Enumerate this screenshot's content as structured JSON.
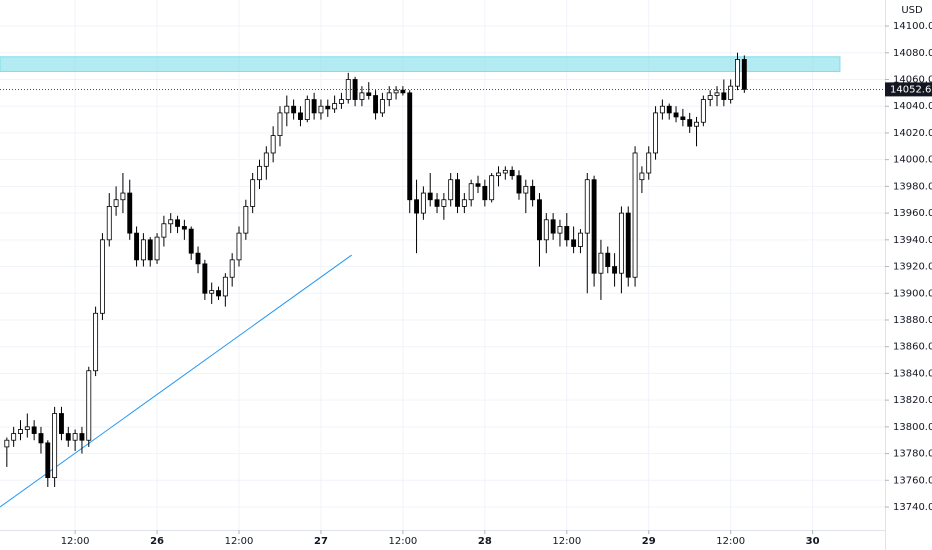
{
  "chart_data": {
    "type": "candlestick",
    "currency": "USD",
    "last_price": 14052.6,
    "up_color": "#ffffff",
    "down_color": "#000000",
    "outline_color": "#000000",
    "grid": true,
    "xlim": [
      -23,
      106.6
    ],
    "ylim": [
      13722.8,
      14119.5
    ],
    "yticks": [
      {
        "value": 13740,
        "label": "13740.0"
      },
      {
        "value": 13760,
        "label": "13760.0"
      },
      {
        "value": 13780,
        "label": "13780.0"
      },
      {
        "value": 13800,
        "label": "13800.0"
      },
      {
        "value": 13820,
        "label": "13820.0"
      },
      {
        "value": 13840,
        "label": "13840.0"
      },
      {
        "value": 13860,
        "label": "13860.0"
      },
      {
        "value": 13880,
        "label": "13880.0"
      },
      {
        "value": 13900,
        "label": "13900.0"
      },
      {
        "value": 13920,
        "label": "13920.0"
      },
      {
        "value": 13940,
        "label": "13940.0"
      },
      {
        "value": 13960,
        "label": "13960.0"
      },
      {
        "value": 13980,
        "label": "13980.0"
      },
      {
        "value": 14000,
        "label": "14000.0"
      },
      {
        "value": 14020,
        "label": "14020.0"
      },
      {
        "value": 14040,
        "label": "14040.0"
      },
      {
        "value": 14060,
        "label": "14060.0"
      },
      {
        "value": 14080,
        "label": "14080.0"
      },
      {
        "value": 14100,
        "label": "14100.0"
      }
    ],
    "xticks": [
      {
        "value": -12,
        "label": "12:00"
      },
      {
        "value": 0,
        "label": "26"
      },
      {
        "value": 12,
        "label": "12:00"
      },
      {
        "value": 24,
        "label": "27"
      },
      {
        "value": 36,
        "label": "12:00"
      },
      {
        "value": 48,
        "label": "28"
      },
      {
        "value": 60,
        "label": "12:00"
      },
      {
        "value": 72,
        "label": "29"
      },
      {
        "value": 84,
        "label": "12:00"
      },
      {
        "value": 96,
        "label": "30"
      }
    ],
    "zone": {
      "color": "#80deea",
      "x": [
        -23,
        100
      ],
      "y": [
        14066,
        14077
      ]
    },
    "trend_line": {
      "color": "#2196f3",
      "x": [
        -23,
        28.5
      ],
      "y": [
        13740,
        13928.6
      ]
    },
    "x": [
      -22,
      -21,
      -20,
      -19,
      -18,
      -17,
      -16,
      -15,
      -14,
      -13,
      -12,
      -11,
      -10,
      -9,
      -8,
      -7,
      -6,
      -5,
      -4,
      -3,
      -2,
      -1,
      0,
      1,
      2,
      3,
      4,
      5,
      6,
      7,
      8,
      9,
      10,
      11,
      12,
      13,
      14,
      15,
      16,
      17,
      18,
      19,
      20,
      21,
      22,
      23,
      24,
      25,
      26,
      27,
      28,
      29,
      30,
      31,
      32,
      33,
      34,
      35,
      36,
      37,
      38,
      39,
      40,
      41,
      42,
      43,
      44,
      45,
      46,
      47,
      48,
      49,
      50,
      51,
      52,
      53,
      54,
      55,
      56,
      57,
      58,
      59,
      60,
      61,
      62,
      63,
      64,
      65,
      66,
      67,
      68,
      69,
      70,
      71,
      72,
      73,
      74,
      75,
      76,
      77,
      78,
      79,
      80,
      81,
      82,
      83,
      84,
      85,
      86
    ],
    "open": [
      13785,
      13790,
      13795,
      13798,
      13800,
      13795,
      13788,
      13762,
      13810,
      13795,
      13790,
      13795,
      13790,
      13842,
      13885,
      13940,
      13965,
      13970,
      13975,
      13945,
      13925,
      13940,
      13925,
      13942,
      13952,
      13955,
      13950,
      13948,
      13930,
      13922,
      13900,
      13902,
      13898,
      13912,
      13925,
      13945,
      13965,
      13985,
      13995,
      14005,
      14018,
      14035,
      14040,
      14035,
      14030,
      14045,
      14035,
      14040,
      14038,
      14042,
      14045,
      14060,
      14045,
      14050,
      14048,
      14035,
      14045,
      14050,
      14052,
      14050,
      13970,
      13960,
      13975,
      13970,
      13965,
      13970,
      13985,
      13965,
      13970,
      13982,
      13980,
      13970,
      13988,
      13990,
      13992,
      13988,
      13975,
      13980,
      13970,
      13940,
      13955,
      13945,
      13950,
      13940,
      13935,
      13945,
      13985,
      13915,
      13930,
      13920,
      13915,
      13960,
      13912,
      13985,
      13990,
      14005,
      14035,
      14040,
      14035,
      14032,
      14030,
      14025,
      14028,
      14045,
      14048,
      14050,
      14045,
      14055,
      14075
    ],
    "high": [
      13792,
      13800,
      13805,
      13810,
      13805,
      13800,
      13790,
      13815,
      13815,
      13800,
      13798,
      13800,
      13845,
      13890,
      13945,
      13975,
      13980,
      13990,
      13985,
      13950,
      13945,
      13942,
      13945,
      13958,
      13960,
      13958,
      13955,
      13950,
      13935,
      13925,
      13908,
      13905,
      13915,
      13930,
      13950,
      13970,
      13990,
      14000,
      14010,
      14025,
      14040,
      14048,
      14045,
      14040,
      14048,
      14050,
      14045,
      14045,
      14048,
      14050,
      14065,
      14062,
      14055,
      14058,
      14052,
      14050,
      14055,
      14055,
      14055,
      14052,
      13985,
      13980,
      13990,
      13975,
      13975,
      13990,
      13990,
      13975,
      13985,
      13988,
      13985,
      13990,
      13995,
      13995,
      13995,
      13992,
      13985,
      13985,
      13975,
      13960,
      13960,
      13955,
      13960,
      13950,
      13948,
      13990,
      13988,
      13940,
      13935,
      13930,
      13965,
      13965,
      14010,
      13995,
      14010,
      14040,
      14045,
      14042,
      14040,
      14038,
      14035,
      14032,
      14048,
      14052,
      14055,
      14060,
      14060,
      14080,
      14078
    ],
    "low": [
      13770,
      13785,
      13790,
      13792,
      13790,
      13780,
      13755,
      13755,
      13790,
      13785,
      13782,
      13780,
      13785,
      13838,
      13880,
      13935,
      13958,
      13960,
      13940,
      13920,
      13920,
      13920,
      13922,
      13935,
      13945,
      13945,
      13940,
      13925,
      13915,
      13895,
      13892,
      13895,
      13890,
      13905,
      13920,
      13940,
      13960,
      13978,
      13985,
      13998,
      14010,
      14025,
      14030,
      14025,
      14028,
      14030,
      14030,
      14032,
      14035,
      14038,
      14042,
      14040,
      14040,
      14045,
      14030,
      14032,
      14040,
      14045,
      14048,
      13960,
      13930,
      13955,
      13965,
      13960,
      13955,
      13965,
      13960,
      13960,
      13965,
      13975,
      13965,
      13968,
      13980,
      13985,
      13985,
      13970,
      13960,
      13965,
      13920,
      13930,
      13940,
      13935,
      13935,
      13930,
      13930,
      13900,
      13905,
      13895,
      13915,
      13905,
      13900,
      13905,
      13905,
      13975,
      13985,
      14000,
      14030,
      14030,
      14028,
      14025,
      14020,
      14010,
      14025,
      14040,
      14040,
      14040,
      14042,
      14052,
      14050
    ],
    "close": [
      13790,
      13795,
      13798,
      13800,
      13795,
      13788,
      13762,
      13810,
      13795,
      13790,
      13795,
      13790,
      13842,
      13885,
      13940,
      13965,
      13970,
      13975,
      13945,
      13925,
      13940,
      13925,
      13942,
      13952,
      13955,
      13950,
      13948,
      13930,
      13922,
      13900,
      13902,
      13898,
      13912,
      13925,
      13945,
      13965,
      13985,
      13995,
      14005,
      14018,
      14035,
      14040,
      14035,
      14030,
      14045,
      14035,
      14040,
      14038,
      14042,
      14045,
      14060,
      14045,
      14050,
      14048,
      14035,
      14045,
      14050,
      14052,
      14050,
      13970,
      13960,
      13975,
      13970,
      13965,
      13970,
      13985,
      13965,
      13970,
      13982,
      13980,
      13970,
      13988,
      13990,
      13992,
      13988,
      13975,
      13980,
      13970,
      13940,
      13955,
      13945,
      13950,
      13940,
      13935,
      13945,
      13985,
      13915,
      13930,
      13920,
      13915,
      13960,
      13912,
      14005,
      13990,
      14005,
      14035,
      14040,
      14035,
      14032,
      14030,
      14025,
      14028,
      14045,
      14048,
      14050,
      14045,
      14055,
      14075,
      14052.6
    ]
  }
}
